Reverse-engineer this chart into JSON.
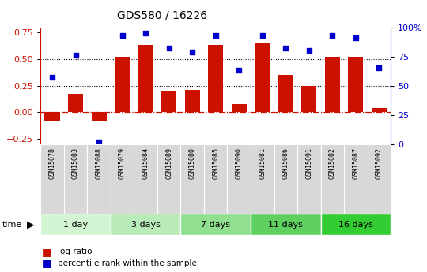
{
  "title": "GDS580 / 16226",
  "samples": [
    "GSM15078",
    "GSM15083",
    "GSM15088",
    "GSM15079",
    "GSM15084",
    "GSM15089",
    "GSM15080",
    "GSM15085",
    "GSM15090",
    "GSM15081",
    "GSM15086",
    "GSM15091",
    "GSM15082",
    "GSM15087",
    "GSM15092"
  ],
  "log_ratio": [
    -0.08,
    0.17,
    -0.08,
    0.52,
    0.63,
    0.2,
    0.21,
    0.63,
    0.08,
    0.65,
    0.35,
    0.25,
    0.52,
    0.52,
    0.04
  ],
  "percentile_rank": [
    57,
    76,
    2,
    93,
    95,
    82,
    79,
    93,
    63,
    93,
    82,
    80,
    93,
    91,
    65
  ],
  "groups": [
    {
      "label": "1 day",
      "start": 0,
      "end": 3,
      "color": "#d4f5d4"
    },
    {
      "label": "3 days",
      "start": 3,
      "end": 6,
      "color": "#b8ebb8"
    },
    {
      "label": "7 days",
      "start": 6,
      "end": 9,
      "color": "#90e090"
    },
    {
      "label": "11 days",
      "start": 9,
      "end": 12,
      "color": "#60d060"
    },
    {
      "label": "16 days",
      "start": 12,
      "end": 15,
      "color": "#33cc33"
    }
  ],
  "bar_color": "#cc1100",
  "dot_color": "#0000cc",
  "ylim_left": [
    -0.3,
    0.8
  ],
  "ylim_right": [
    0,
    100
  ],
  "yticks_left": [
    -0.25,
    0,
    0.25,
    0.5,
    0.75
  ],
  "yticks_right": [
    0,
    25,
    50,
    75,
    100
  ],
  "bg_color": "#d8d8d8",
  "fig_width": 5.4,
  "fig_height": 3.45,
  "dpi": 100
}
